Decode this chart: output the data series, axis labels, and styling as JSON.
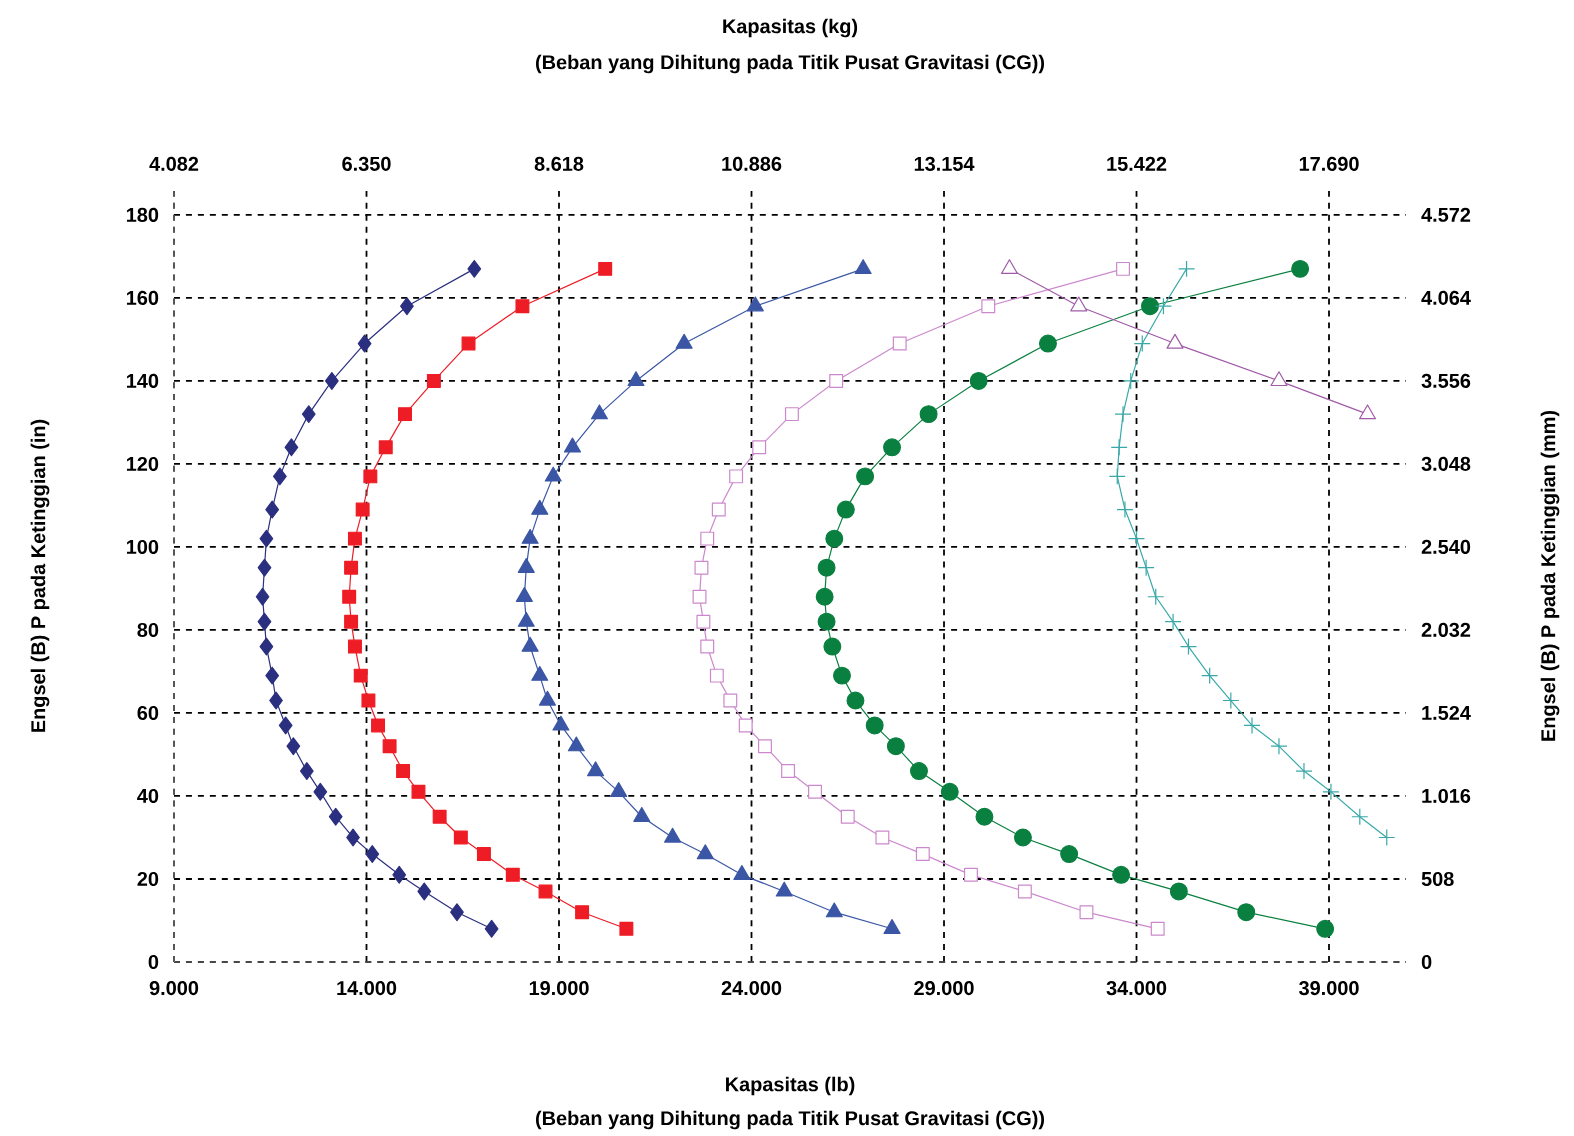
{
  "chart_data": {
    "type": "line",
    "xlabel": "Kapasitas (lb)",
    "x2label": "Kapasitas (kg)",
    "ylabel": "Engsel (B) P pada Ketinggian (in)",
    "y2label": "Engsel (B) P pada Ketinggian (mm)",
    "annotations": [
      "(Beban yang Dihitung pada Titik Pusat Gravitasi (CG))",
      "(Beban yang Dihitung pada Titik Pusat Gravitasi (CG))"
    ],
    "xlim": [
      9000,
      41000
    ],
    "xticks": [
      {
        "value": 9000,
        "label": "9.000"
      },
      {
        "value": 14000,
        "label": "14.000"
      },
      {
        "value": 19000,
        "label": "19.000"
      },
      {
        "value": 24000,
        "label": "24.000"
      },
      {
        "value": 29000,
        "label": "29.000"
      },
      {
        "value": 34000,
        "label": "34.000"
      },
      {
        "value": 39000,
        "label": "39.000"
      }
    ],
    "x2lim": [
      4082,
      18597
    ],
    "x2ticks": [
      {
        "value": 4082,
        "label": "4.082"
      },
      {
        "value": 6350,
        "label": "6.350"
      },
      {
        "value": 8618,
        "label": "8.618"
      },
      {
        "value": 10886,
        "label": "10.886"
      },
      {
        "value": 13154,
        "label": "13.154"
      },
      {
        "value": 15422,
        "label": "15.422"
      },
      {
        "value": 17690,
        "label": "17.690"
      }
    ],
    "ylim": [
      0,
      186
    ],
    "yticks": [
      0,
      20,
      40,
      60,
      80,
      100,
      120,
      140,
      160,
      180
    ],
    "y2lim": [
      0,
      4724
    ],
    "y2ticks": [
      0,
      508,
      {
        "value": 1016,
        "label": "1.016"
      },
      {
        "value": 1524,
        "label": "1.524"
      },
      {
        "value": 2032,
        "label": "2.032"
      },
      {
        "value": 2540,
        "label": "2.540"
      },
      {
        "value": 3048,
        "label": "3.048"
      },
      {
        "value": 3556,
        "label": "3.556"
      },
      {
        "value": 4064,
        "label": "4.064"
      },
      {
        "value": 4572,
        "label": "4.572"
      }
    ],
    "grid": true,
    "line_style": "solid",
    "series": [
      {
        "color": "#2b2f7f",
        "marker": "diamond",
        "x": [
          16800,
          15050,
          13950,
          13100,
          12500,
          12050,
          11750,
          11550,
          11400,
          11350,
          11300,
          11350,
          11400,
          11550,
          11650,
          11900,
          12100,
          12450,
          12800,
          13200,
          13650,
          14150,
          14850,
          15500,
          16350,
          17250
        ],
        "values": [
          167,
          158,
          149,
          140,
          132,
          124,
          117,
          109,
          102,
          95,
          88,
          82,
          76,
          69,
          63,
          57,
          52,
          46,
          41,
          35,
          30,
          26,
          21,
          17,
          12,
          8
        ]
      },
      {
        "color": "#ee1c25",
        "marker": "square",
        "x": [
          20200,
          18050,
          16650,
          15750,
          15000,
          14500,
          14100,
          13900,
          13700,
          13600,
          13550,
          13600,
          13700,
          13850,
          14050,
          14300,
          14600,
          14950,
          15350,
          15900,
          16450,
          17050,
          17800,
          18650,
          19600,
          20750
        ],
        "values": [
          167,
          158,
          149,
          140,
          132,
          124,
          117,
          109,
          102,
          95,
          88,
          82,
          76,
          69,
          63,
          57,
          52,
          46,
          41,
          35,
          30,
          26,
          21,
          17,
          12,
          8
        ]
      },
      {
        "color": "#3a56a5",
        "marker": "triangle",
        "x": [
          26900,
          24100,
          22250,
          21000,
          20050,
          19350,
          18850,
          18500,
          18250,
          18150,
          18100,
          18150,
          18250,
          18500,
          18700,
          19050,
          19450,
          19950,
          20550,
          21150,
          21950,
          22800,
          23750,
          24850,
          26150,
          27650
        ],
        "values": [
          167,
          158,
          149,
          140,
          132,
          124,
          117,
          109,
          102,
          95,
          88,
          82,
          76,
          69,
          63,
          57,
          52,
          46,
          41,
          35,
          30,
          26,
          21,
          17,
          12,
          8
        ]
      },
      {
        "color": "#cc88cc",
        "marker": "square_open",
        "x": [
          33650,
          30150,
          27850,
          26200,
          25050,
          24200,
          23600,
          23150,
          22850,
          22700,
          22650,
          22750,
          22850,
          23100,
          23450,
          23850,
          24350,
          24950,
          25650,
          26500,
          27400,
          28450,
          29700,
          31100,
          32700,
          34550
        ],
        "values": [
          167,
          158,
          149,
          140,
          132,
          124,
          117,
          109,
          102,
          95,
          88,
          82,
          76,
          69,
          63,
          57,
          52,
          46,
          41,
          35,
          30,
          26,
          21,
          17,
          12,
          8
        ]
      },
      {
        "color": "#0a8040",
        "marker": "circle",
        "x": [
          38250,
          34350,
          31700,
          29900,
          28600,
          27650,
          26950,
          26450,
          26150,
          25950,
          25900,
          25950,
          26100,
          26350,
          26700,
          27200,
          27750,
          28350,
          29150,
          30050,
          31050,
          32250,
          33600,
          35100,
          36850,
          38900
        ],
        "values": [
          167,
          158,
          149,
          140,
          132,
          124,
          117,
          109,
          102,
          95,
          88,
          82,
          76,
          69,
          63,
          57,
          52,
          46,
          41,
          35,
          30,
          26,
          21,
          17,
          12,
          8
        ]
      },
      {
        "color": "#3aa8a8",
        "marker": "cross",
        "x": [
          35300,
          34700,
          34150,
          33850,
          33650,
          33550,
          33500,
          33700,
          34000,
          34250,
          34500,
          34950,
          35350,
          35900,
          36450,
          37000,
          37700,
          38350,
          39050,
          39800,
          40500
        ],
        "values": [
          167,
          158,
          149,
          140,
          132,
          124,
          117,
          109,
          102,
          95,
          88,
          82,
          76,
          69,
          63,
          57,
          52,
          46,
          41,
          35,
          30
        ]
      },
      {
        "color": "#a05aa8",
        "marker": "triangle_open",
        "x": [
          30700,
          32500,
          35000,
          37700,
          40000
        ],
        "values": [
          167,
          158,
          149,
          140,
          132
        ]
      }
    ]
  }
}
